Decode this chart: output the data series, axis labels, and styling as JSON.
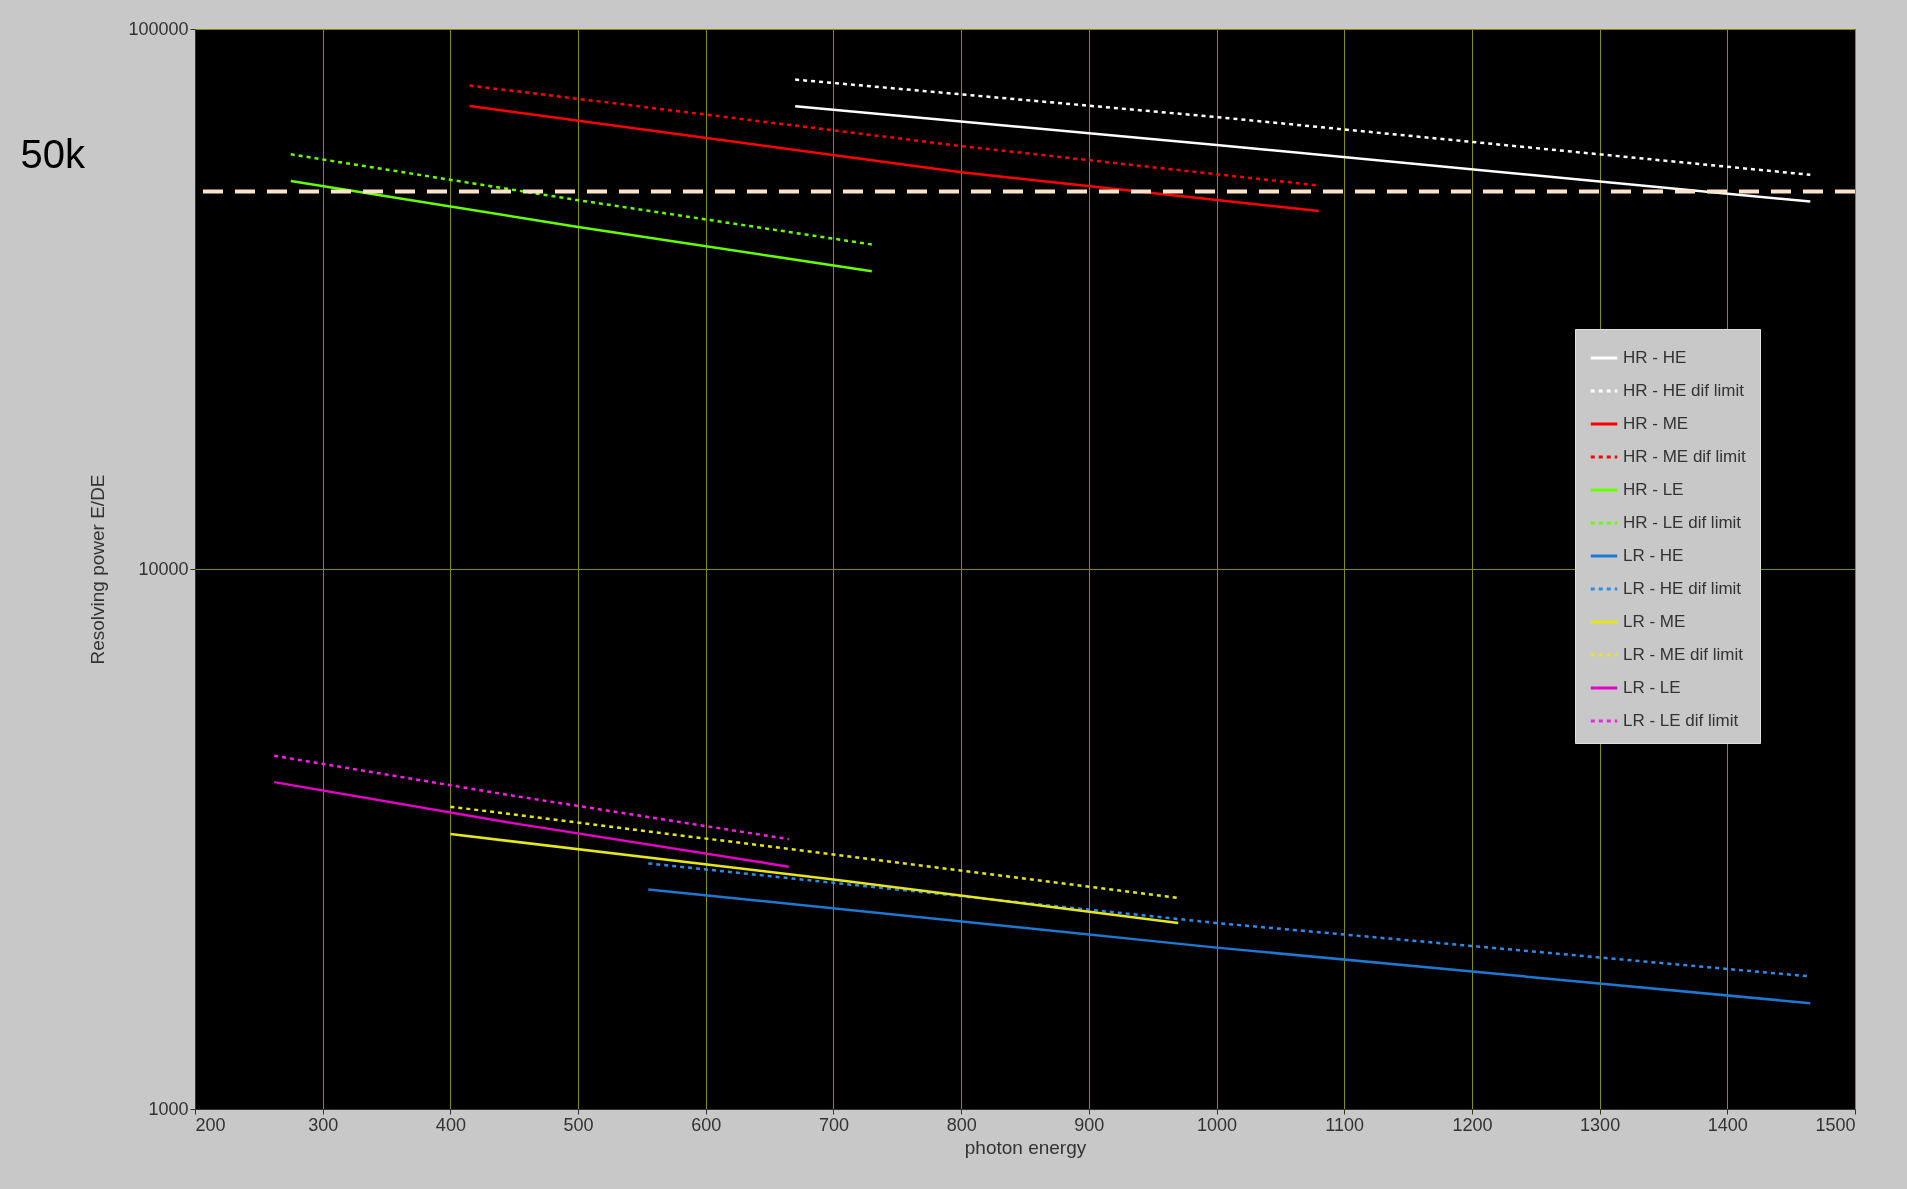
{
  "chart_data": {
    "type": "line",
    "xlabel": "photon energy",
    "ylabel": "Resolving power E/DE",
    "log": "y",
    "grid": true,
    "legend": "right",
    "xlim": [
      200,
      1500
    ],
    "xticks": [
      200,
      300,
      400,
      500,
      600,
      700,
      800,
      900,
      1000,
      1100,
      1200,
      1300,
      1400,
      1500
    ],
    "ylim": [
      1000,
      100000
    ],
    "yticks": [
      1000,
      10000,
      100000
    ],
    "ref_lines": [
      {
        "axis": "y",
        "value": 50000,
        "label": "50k",
        "color": "#fde4c8",
        "line_style": "dashed"
      }
    ],
    "series": [
      {
        "name": "HR - HE",
        "color": "#ffffff",
        "line_style": "solid",
        "x": [
          670,
          1000,
          1465
        ],
        "values": [
          71900,
          61000,
          47900
        ]
      },
      {
        "name": "HR - HE dif limit",
        "color": "#ffffff",
        "line_style": "dotted",
        "x": [
          670,
          1000,
          1465
        ],
        "values": [
          80600,
          68700,
          53700
        ]
      },
      {
        "name": "HR - ME",
        "color": "#ff0000",
        "line_style": "solid",
        "x": [
          415,
          800,
          1080
        ],
        "values": [
          72000,
          54300,
          46000
        ]
      },
      {
        "name": "HR - ME dif limit",
        "color": "#ff0000",
        "line_style": "dotted",
        "x": [
          415,
          800,
          1080
        ],
        "values": [
          78600,
          60700,
          51300
        ]
      },
      {
        "name": "HR - LE",
        "color": "#66ff00",
        "line_style": "solid",
        "x": [
          275,
          500,
          730
        ],
        "values": [
          52300,
          43000,
          35600
        ]
      },
      {
        "name": "HR - LE dif limit",
        "color": "#66ff00",
        "line_style": "dotted",
        "x": [
          275,
          500,
          730
        ],
        "values": [
          58600,
          48200,
          39900
        ]
      },
      {
        "name": "LR - HE",
        "color": "#1e78d2",
        "line_style": "solid",
        "x": [
          555,
          1000,
          1465
        ],
        "values": [
          2550,
          1990,
          1570
        ]
      },
      {
        "name": "LR - HE dif limit",
        "color": "#2a8cf0",
        "line_style": "dotted",
        "x": [
          555,
          1000,
          1465
        ],
        "values": [
          2850,
          2210,
          1760
        ]
      },
      {
        "name": "LR - ME",
        "color": "#e6e61e",
        "line_style": "solid",
        "x": [
          400,
          700,
          970
        ],
        "values": [
          3230,
          2660,
          2210
        ]
      },
      {
        "name": "LR - ME dif limit",
        "color": "#e6e61e",
        "line_style": "dotted",
        "x": [
          400,
          700,
          970
        ],
        "values": [
          3630,
          2960,
          2460
        ]
      },
      {
        "name": "LR - LE",
        "color": "#e600c8",
        "line_style": "solid",
        "x": [
          262,
          450,
          665
        ],
        "values": [
          4030,
          3380,
          2810
        ]
      },
      {
        "name": "LR - LE dif limit",
        "color": "#ff1ee6",
        "line_style": "dotted",
        "x": [
          262,
          450,
          665
        ],
        "values": [
          4510,
          3800,
          3160
        ]
      }
    ]
  }
}
